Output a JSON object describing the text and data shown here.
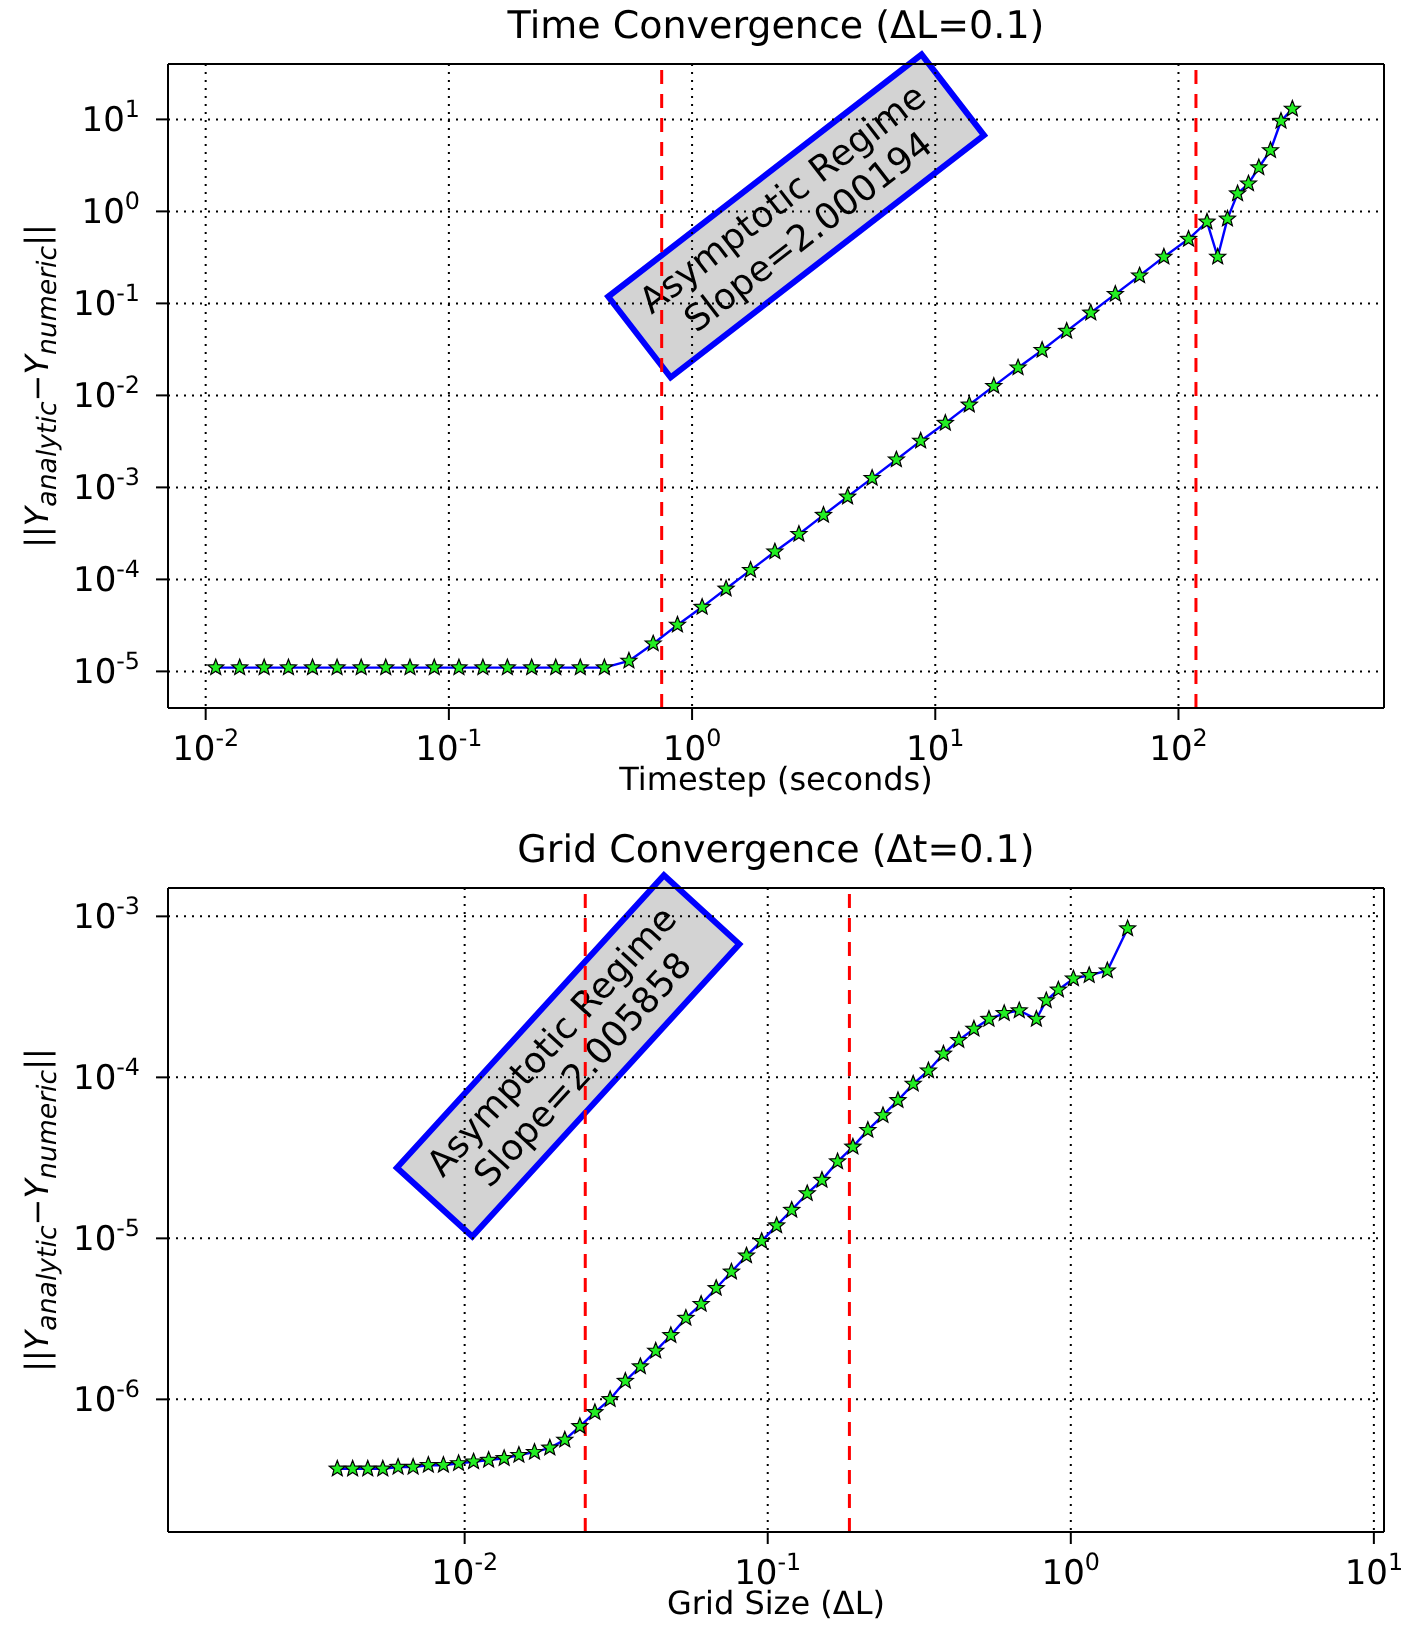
{
  "chart_data": [
    {
      "type": "line",
      "title": "Time Convergence (ΔL=0.1)",
      "xlabel": "Timestep (seconds)",
      "ylabel": "||Y$_{analytic}$−Y$_{numeric}$||",
      "log": "xy",
      "grid": true,
      "marker": "star",
      "line_style": "solid",
      "xlim": [
        0.007,
        700
      ],
      "ylim": [
        4e-06,
        40
      ],
      "xticks": [
        {
          "value": 0.01,
          "label": "10$^{-2}$"
        },
        {
          "value": 0.1,
          "label": "10$^{-1}$"
        },
        {
          "value": 1,
          "label": "10$^{0}$"
        },
        {
          "value": 10,
          "label": "10$^{1}$"
        },
        {
          "value": 100,
          "label": "10$^{2}$"
        }
      ],
      "yticks": [
        {
          "value": 1e-05,
          "label": "10$^{-5}$"
        },
        {
          "value": 0.0001,
          "label": "10$^{-4}$"
        },
        {
          "value": 0.001,
          "label": "10$^{-3}$"
        },
        {
          "value": 0.01,
          "label": "10$^{-2}$"
        },
        {
          "value": 0.1,
          "label": "10$^{-1}$"
        },
        {
          "value": 1,
          "label": "10$^{0}$"
        },
        {
          "value": 10,
          "label": "10$^{1}$"
        }
      ],
      "ref_lines": [
        {
          "axis": "x",
          "value": 0.75,
          "color": "#ff0000",
          "line_style": "dashed"
        },
        {
          "axis": "x",
          "value": 118,
          "color": "#ff0000",
          "line_style": "dashed"
        }
      ],
      "annotations": [
        "Asymptotic Regime\nSlope=2.000194"
      ],
      "series": [
        {
          "color": "#0000ff",
          "x": [
            0.011,
            0.0138,
            0.0174,
            0.0219,
            0.0275,
            0.0347,
            0.0436,
            0.055,
            0.0692,
            0.0871,
            0.11,
            0.138,
            0.174,
            0.219,
            0.275,
            0.347,
            0.436,
            0.55,
            0.692,
            0.871,
            1.1,
            1.38,
            1.74,
            2.19,
            2.75,
            3.47,
            4.36,
            5.5,
            6.92,
            8.71,
            11,
            13.8,
            17.4,
            21.9,
            27.5,
            34.7,
            43.6,
            55,
            69.2,
            87.1,
            110,
            131,
            145,
            159,
            175,
            194,
            214,
            239,
            264,
            294
          ],
          "values": [
            1.1e-05,
            1.1e-05,
            1.1e-05,
            1.1e-05,
            1.1e-05,
            1.1e-05,
            1.1e-05,
            1.1e-05,
            1.1e-05,
            1.1e-05,
            1.1e-05,
            1.1e-05,
            1.1e-05,
            1.1e-05,
            1.1e-05,
            1.1e-05,
            1.1e-05,
            1.3e-05,
            2e-05,
            3.2e-05,
            5e-05,
            7.9e-05,
            0.000126,
            0.0002,
            0.00031,
            0.0005,
            0.00079,
            0.00126,
            0.002,
            0.0032,
            0.005,
            0.0079,
            0.0126,
            0.02,
            0.031,
            0.05,
            0.079,
            0.126,
            0.2,
            0.32,
            0.5,
            0.77,
            0.32,
            0.83,
            1.56,
            2.0,
            3.0,
            4.6,
            9.6,
            13
          ]
        }
      ]
    },
    {
      "type": "line",
      "title": "Grid Convergence (Δt=0.1)",
      "xlabel": "Grid Size (ΔL)",
      "ylabel": "||Y$_{analytic}$−Y$_{numeric}$||",
      "log": "xy",
      "grid": true,
      "marker": "star",
      "line_style": "solid",
      "xlim": [
        0.00105,
        10.8
      ],
      "ylim": [
        1.5e-07,
        0.0015
      ],
      "xticks": [
        {
          "value": 0.01,
          "label": "10$^{-2}$"
        },
        {
          "value": 0.1,
          "label": "10$^{-1}$"
        },
        {
          "value": 1,
          "label": "10$^{0}$"
        },
        {
          "value": 10,
          "label": "10$^{1}$"
        }
      ],
      "yticks": [
        {
          "value": 1e-06,
          "label": "10$^{-6}$"
        },
        {
          "value": 1e-05,
          "label": "10$^{-5}$"
        },
        {
          "value": 0.0001,
          "label": "10$^{-4}$"
        },
        {
          "value": 0.001,
          "label": "10$^{-3}$"
        }
      ],
      "ref_lines": [
        {
          "axis": "x",
          "value": 0.025,
          "color": "#ff0000",
          "line_style": "dashed"
        },
        {
          "axis": "x",
          "value": 0.186,
          "color": "#ff0000",
          "line_style": "dashed"
        }
      ],
      "annotations": [
        "Asymptotic Regime\nSlope=2.005858"
      ],
      "series": [
        {
          "color": "#0000ff",
          "x": [
            0.0038,
            0.00427,
            0.00479,
            0.00537,
            0.00603,
            0.00676,
            0.00759,
            0.00851,
            0.00955,
            0.0107,
            0.012,
            0.0135,
            0.0151,
            0.017,
            0.0191,
            0.0214,
            0.024,
            0.0269,
            0.0302,
            0.0339,
            0.038,
            0.0427,
            0.0479,
            0.0537,
            0.0603,
            0.0676,
            0.0759,
            0.0851,
            0.0955,
            0.107,
            0.12,
            0.135,
            0.151,
            0.17,
            0.191,
            0.214,
            0.24,
            0.269,
            0.302,
            0.339,
            0.38,
            0.427,
            0.479,
            0.537,
            0.603,
            0.676,
            0.77,
            0.83,
            0.91,
            1.02,
            1.15,
            1.32,
            1.54
          ],
          "values": [
            3.7e-07,
            3.7e-07,
            3.7e-07,
            3.7e-07,
            3.8e-07,
            3.8e-07,
            3.9e-07,
            3.9e-07,
            4e-07,
            4.1e-07,
            4.2e-07,
            4.3e-07,
            4.5e-07,
            4.7e-07,
            5e-07,
            5.6e-07,
            6.8e-07,
            8.3e-07,
            1e-06,
            1.3e-06,
            1.6e-06,
            2e-06,
            2.5e-06,
            3.2e-06,
            3.9e-06,
            4.9e-06,
            6.2e-06,
            7.8e-06,
            9.6e-06,
            1.2e-05,
            1.5e-05,
            1.9e-05,
            2.3e-05,
            3e-05,
            3.7e-05,
            4.7e-05,
            5.8e-05,
            7.2e-05,
            9.1e-05,
            0.00011,
            0.00014,
            0.00017,
            0.0002,
            0.00023,
            0.00025,
            0.00026,
            0.00023,
            0.0003,
            0.00035,
            0.00041,
            0.00043,
            0.00046,
            0.00084
          ]
        }
      ]
    }
  ]
}
